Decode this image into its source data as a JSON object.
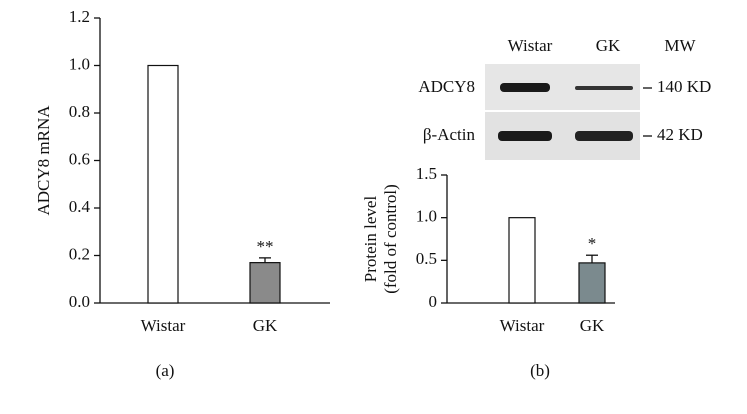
{
  "chart_data": [
    {
      "type": "bar",
      "ylabel": "ADCY8 mRNA",
      "panel_label": "(a)",
      "categories": [
        "Wistar",
        "GK"
      ],
      "values": [
        1.0,
        0.17
      ],
      "errors": [
        null,
        0.02
      ],
      "significance": [
        null,
        "**"
      ],
      "colors": [
        "#ffffff",
        "#8a8a8a"
      ],
      "ylim": [
        0,
        1.2
      ],
      "yticks": [
        {
          "value": 0,
          "label": "0.0"
        },
        0.2,
        0.4,
        0.6,
        0.8,
        {
          "value": 1,
          "label": "1.0"
        },
        1.2
      ]
    },
    {
      "type": "bar",
      "ylabel": [
        "Protein level",
        "(fold of control)"
      ],
      "panel_label": "(b)",
      "categories": [
        "Wistar",
        "GK"
      ],
      "values": [
        1.0,
        0.47
      ],
      "errors": [
        null,
        0.09
      ],
      "significance": [
        null,
        "*"
      ],
      "colors": [
        "#ffffff",
        "#7b8a8e"
      ],
      "ylim": [
        0,
        1.5
      ],
      "yticks": [
        0,
        0.5,
        {
          "value": 1,
          "label": "1.0"
        },
        1.5
      ]
    }
  ],
  "blot": {
    "lanes": [
      "Wistar",
      "GK"
    ],
    "mw_header": "MW",
    "rows": [
      {
        "label": "ADCY8",
        "mw": "140 KD"
      },
      {
        "label": "β-Actin",
        "mw": "42 KD"
      }
    ]
  }
}
